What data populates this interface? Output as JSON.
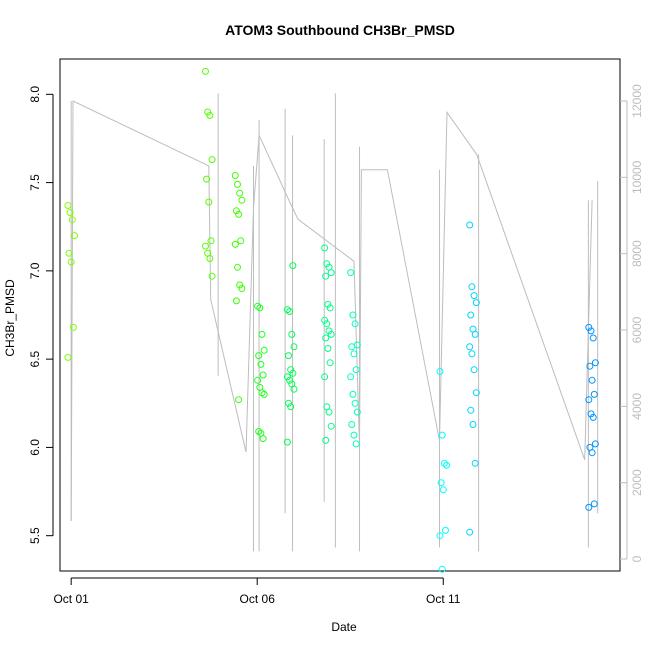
{
  "chart_data": {
    "type": "scatter",
    "title": "ATOM3 Southbound CH3Br_PMSD",
    "xlabel": "Date",
    "ylabel": "CH3Br_PMSD",
    "xlim": [
      -0.3,
      14.75
    ],
    "ylim": [
      5.3,
      8.2
    ],
    "x_ticks": [
      {
        "value": 0,
        "label": "Oct 01"
      },
      {
        "value": 5,
        "label": "Oct 06"
      },
      {
        "value": 10,
        "label": "Oct 11"
      }
    ],
    "y_ticks": [
      5.5,
      6.0,
      6.5,
      7.0,
      7.5,
      8.0
    ],
    "y2lim": [
      0,
      12000
    ],
    "y2_ticks": [
      0,
      2000,
      4000,
      6000,
      8000,
      10000,
      12000
    ],
    "colors": {
      "trace": "#bdbdbd",
      "palette": [
        "#80ff00",
        "#55ff00",
        "#1fff1f",
        "#00ff55",
        "#00ff8a",
        "#00ffbf",
        "#00ffff",
        "#00d5ff",
        "#0095ff"
      ]
    },
    "clusters": [
      {
        "x": 0.0,
        "y": [
          7.37,
          7.33,
          7.29,
          7.2,
          7.1,
          7.05,
          6.68,
          6.51
        ],
        "color": "#80ff00"
      },
      {
        "x": 3.7,
        "y": [
          8.13,
          7.9,
          7.88,
          7.63,
          7.52,
          7.39,
          7.17,
          7.14,
          7.1,
          7.07,
          6.97
        ],
        "color": "#55ff00"
      },
      {
        "x": 4.5,
        "y": [
          7.54,
          7.49,
          7.44,
          7.4,
          7.34,
          7.32,
          7.17,
          7.15,
          7.02,
          6.92,
          6.9,
          6.83,
          6.27
        ],
        "color": "#3fff00"
      },
      {
        "x": 5.1,
        "y": [
          6.8,
          6.79,
          6.64,
          6.55,
          6.52,
          6.47,
          6.41,
          6.38,
          6.34,
          6.31,
          6.3,
          6.09,
          6.08,
          6.05
        ],
        "color": "#1fff1f"
      },
      {
        "x": 5.9,
        "y": [
          6.78,
          6.77,
          6.64,
          6.57,
          6.52,
          6.44,
          6.42,
          6.4,
          6.38,
          6.36,
          6.33,
          6.25,
          6.23,
          7.03,
          6.03
        ],
        "color": "#00ff55"
      },
      {
        "x": 6.9,
        "y": [
          7.13,
          7.04,
          7.02,
          6.99,
          6.97,
          6.81,
          6.79,
          6.72,
          6.7,
          6.66,
          6.64,
          6.62,
          6.56,
          6.48,
          6.4,
          6.23,
          6.2,
          6.12,
          6.04
        ],
        "color": "#00ff8a"
      },
      {
        "x": 7.6,
        "y": [
          6.99,
          6.75,
          6.7,
          6.58,
          6.57,
          6.53,
          6.44,
          6.4,
          6.3,
          6.25,
          6.2,
          6.13,
          6.07,
          6.02
        ],
        "color": "#00ffbf"
      },
      {
        "x": 10.0,
        "y": [
          6.43,
          6.07,
          5.91,
          5.9,
          5.8,
          5.76,
          5.53,
          5.5,
          5.31
        ],
        "color": "#00ffff"
      },
      {
        "x": 10.8,
        "y": [
          7.26,
          6.91,
          6.86,
          6.82,
          6.75,
          6.67,
          6.64,
          6.57,
          6.53,
          6.44,
          6.31,
          6.21,
          6.13,
          5.91,
          5.52
        ],
        "color": "#00d5ff"
      },
      {
        "x": 14.0,
        "y": [
          6.68,
          6.66,
          6.62,
          6.48,
          6.46,
          6.38,
          6.3,
          6.27,
          6.19,
          6.17,
          6.02,
          6.0,
          5.97,
          5.68,
          5.66
        ],
        "color": "#0095ff"
      }
    ],
    "trace_spikes": [
      {
        "x": 0.0,
        "y2": [
          1000,
          12000
        ]
      },
      {
        "x": 3.95,
        "y2": [
          4800,
          12200
        ]
      },
      {
        "x": 4.9,
        "y2": [
          200,
          10300
        ]
      },
      {
        "x": 5.05,
        "y2": [
          200,
          11500
        ]
      },
      {
        "x": 5.75,
        "y2": [
          1200,
          11800
        ]
      },
      {
        "x": 5.95,
        "y2": [
          200,
          11100
        ]
      },
      {
        "x": 6.8,
        "y2": [
          1500,
          11000
        ]
      },
      {
        "x": 7.1,
        "y2": [
          300,
          12200
        ]
      },
      {
        "x": 7.75,
        "y2": [
          200,
          10800
        ]
      },
      {
        "x": 9.9,
        "y2": [
          300,
          10200
        ]
      },
      {
        "x": 10.95,
        "y2": [
          200,
          10600
        ]
      },
      {
        "x": 13.9,
        "y2": [
          300,
          9400
        ]
      },
      {
        "x": 14.15,
        "y2": [
          1200,
          9900
        ]
      }
    ],
    "trace_path": [
      {
        "x": 0.0,
        "y2": 1000
      },
      {
        "x": 0.05,
        "y2": 12000
      },
      {
        "x": 3.7,
        "y2": 10300
      },
      {
        "x": 3.75,
        "y2": 6800
      },
      {
        "x": 4.7,
        "y2": 2800
      },
      {
        "x": 4.9,
        "y2": 9200
      },
      {
        "x": 5.05,
        "y2": 11100
      },
      {
        "x": 5.9,
        "y2": 9300
      },
      {
        "x": 6.1,
        "y2": 8900
      },
      {
        "x": 7.6,
        "y2": 7800
      },
      {
        "x": 7.75,
        "y2": 3000
      },
      {
        "x": 7.8,
        "y2": 10200
      },
      {
        "x": 8.5,
        "y2": 10200
      },
      {
        "x": 9.9,
        "y2": 3100
      },
      {
        "x": 10.1,
        "y2": 11700
      },
      {
        "x": 10.9,
        "y2": 10600
      },
      {
        "x": 13.8,
        "y2": 2600
      },
      {
        "x": 14.0,
        "y2": 9400
      }
    ]
  }
}
